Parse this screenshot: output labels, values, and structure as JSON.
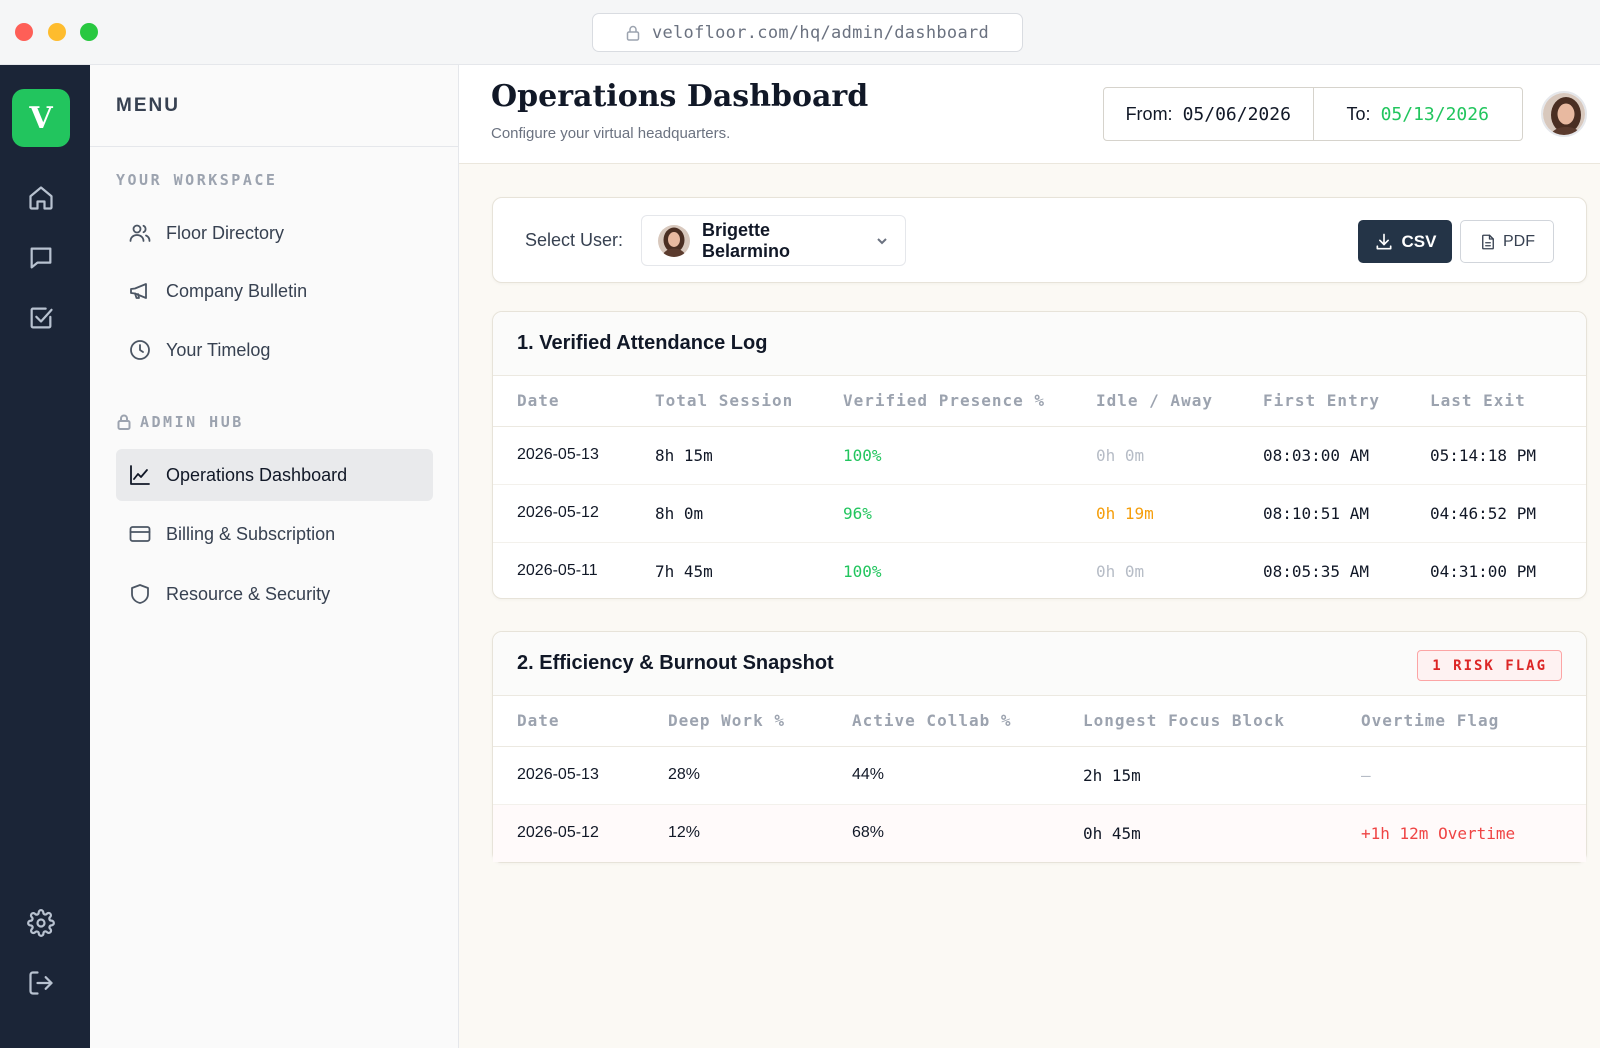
{
  "browser": {
    "url": "velofloor.com/hq/admin/dashboard"
  },
  "rail": {
    "logo_letter": "V",
    "icons": [
      "home-icon",
      "chat-icon",
      "checkbox-icon",
      "gear-icon",
      "logout-icon"
    ]
  },
  "menu": {
    "title": "MENU",
    "workspace_label": "YOUR WORKSPACE",
    "workspace_items": [
      {
        "label": "Floor Directory",
        "icon": "users-icon"
      },
      {
        "label": "Company Bulletin",
        "icon": "megaphone-icon"
      },
      {
        "label": "Your Timelog",
        "icon": "clock-icon"
      }
    ],
    "admin_label": "ADMIN HUB",
    "admin_items": [
      {
        "label": "Operations Dashboard",
        "icon": "chart-icon",
        "active": true
      },
      {
        "label": "Billing & Subscription",
        "icon": "card-icon"
      },
      {
        "label": "Resource & Security",
        "icon": "shield-icon"
      }
    ]
  },
  "header": {
    "title": "Operations Dashboard",
    "subtitle": "Configure your virtual headquarters.",
    "from_label": "From:",
    "from_value": "05/06/2026",
    "to_label": "To:",
    "to_value": "05/13/2026"
  },
  "user_bar": {
    "select_label": "Select User:",
    "selected_user": "Brigette Belarmino",
    "csv_label": "CSV",
    "pdf_label": "PDF"
  },
  "attendance": {
    "title": "1. Verified Attendance Log",
    "columns": [
      "Date",
      "Total Session",
      "Verified Presence %",
      "Idle / Away",
      "First Entry",
      "Last Exit"
    ],
    "rows": [
      {
        "date": "2026-05-13",
        "total": "8h 15m",
        "presence": "100%",
        "idle": "0h 0m",
        "first": "08:03:00 AM",
        "last": "05:14:18 PM"
      },
      {
        "date": "2026-05-12",
        "total": "8h 0m",
        "presence": "96%",
        "idle": "0h 19m",
        "first": "08:10:51 AM",
        "last": "04:46:52 PM"
      },
      {
        "date": "2026-05-11",
        "total": "7h 45m",
        "presence": "100%",
        "idle": "0h 0m",
        "first": "08:05:35 AM",
        "last": "04:31:00 PM"
      }
    ]
  },
  "efficiency": {
    "title": "2. Efficiency & Burnout Snapshot",
    "badge": "1 RISK FLAG",
    "columns": [
      "Date",
      "Deep Work %",
      "Active Collab %",
      "Longest Focus Block",
      "Overtime Flag"
    ],
    "rows": [
      {
        "date": "2026-05-13",
        "deep": "28%",
        "collab": "44%",
        "focus": "2h 15m",
        "overtime": "—"
      },
      {
        "date": "2026-05-12",
        "deep": "12%",
        "collab": "68%",
        "focus": "0h 45m",
        "overtime": "+1h 12m Overtime"
      }
    ]
  },
  "colors": {
    "rail_bg": "#1b2537",
    "accent_green": "#22c55e",
    "warn_orange": "#f59e0b",
    "danger_red": "#ef4444"
  }
}
